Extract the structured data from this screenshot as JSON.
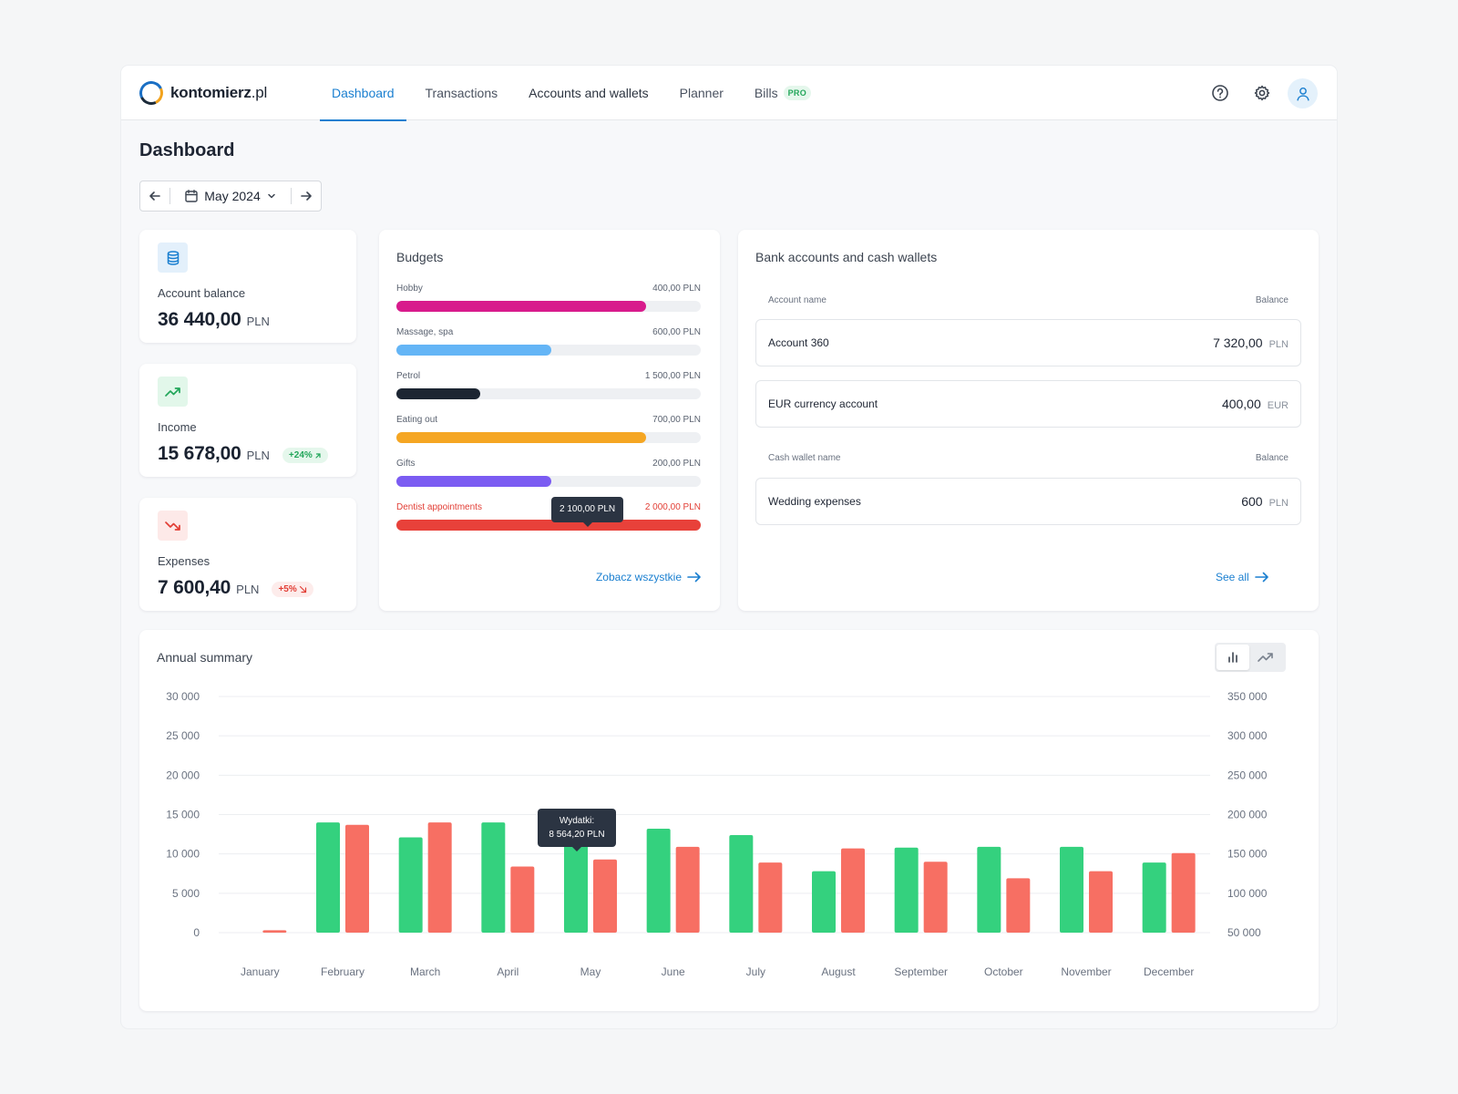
{
  "brand": {
    "name": "kontomierz",
    "tld": ".pl"
  },
  "nav": {
    "items": [
      {
        "label": "Dashboard"
      },
      {
        "label": "Transactions"
      },
      {
        "label": "Accounts and wallets"
      },
      {
        "label": "Planner"
      },
      {
        "label": "Bills",
        "badge": "PRO"
      }
    ]
  },
  "header": {
    "icons": [
      "help-icon",
      "gear-icon",
      "user-icon"
    ]
  },
  "page": {
    "title": "Dashboard"
  },
  "month_picker": {
    "value": "May 2024"
  },
  "stats": {
    "balance": {
      "label": "Account balance",
      "value": "36 440,00",
      "currency": "PLN"
    },
    "income": {
      "label": "Income",
      "value": "15 678,00",
      "currency": "PLN",
      "change": "+24%"
    },
    "expenses": {
      "label": "Expenses",
      "value": "7 600,40",
      "currency": "PLN",
      "change": "+5%"
    }
  },
  "budgets": {
    "title": "Budgets",
    "items": [
      {
        "name": "Hobby",
        "limit": "400,00 PLN",
        "progress": 0.82,
        "color": "#d81b8c"
      },
      {
        "name": "Massage, spa",
        "limit": "600,00 PLN",
        "progress": 0.51,
        "color": "#64b5f6"
      },
      {
        "name": "Petrol",
        "limit": "1 500,00 PLN",
        "progress": 0.275,
        "color": "#1c2532"
      },
      {
        "name": "Eating out",
        "limit": "700,00 PLN",
        "progress": 0.82,
        "color": "#f5a623"
      },
      {
        "name": "Gifts",
        "limit": "200,00 PLN",
        "progress": 0.51,
        "color": "#7b5cf2"
      },
      {
        "name": "Dentist appointments",
        "limit": "2 000,00 PLN",
        "progress": 1.0,
        "color": "#e8413a",
        "over": true
      }
    ],
    "tooltip": "2 100,00 PLN",
    "see_all": "Zobacz wszystkie"
  },
  "accounts": {
    "title": "Bank accounts and cash wallets",
    "bank_header": {
      "name": "Account name",
      "balance": "Balance"
    },
    "bank": [
      {
        "name": "Account 360",
        "balance": "7 320,00",
        "currency": "PLN"
      },
      {
        "name": "EUR currency account",
        "balance": "400,00",
        "currency": "EUR"
      }
    ],
    "cash_header": {
      "name": "Cash wallet name",
      "balance": "Balance"
    },
    "cash": [
      {
        "name": "Wedding expenses",
        "balance": "600",
        "currency": "PLN"
      }
    ],
    "see_all": "See all"
  },
  "annual": {
    "title": "Annual summary",
    "tooltip": {
      "line1": "Wydatki:",
      "line2": "8 564,20 PLN"
    }
  },
  "chart_data": {
    "type": "bar",
    "categories": [
      "January",
      "February",
      "March",
      "April",
      "May",
      "June",
      "July",
      "August",
      "September",
      "October",
      "November",
      "December"
    ],
    "series": [
      {
        "values": [
          0,
          14000,
          12100,
          14000,
          14000,
          13200,
          12400,
          7800,
          10800,
          10900,
          10900,
          8900
        ],
        "color": "#34d17e"
      },
      {
        "values": [
          300,
          13700,
          14000,
          8400,
          9300,
          10900,
          8900,
          10700,
          9000,
          6900,
          7800,
          10100
        ],
        "color": "#f76f63"
      }
    ],
    "y_left_ticks": [
      "30 000",
      "25 000",
      "20 000",
      "15 000",
      "10 000",
      "5 000",
      "0"
    ],
    "y_right_ticks": [
      "350 000",
      "300 000",
      "250 000",
      "200 000",
      "150 000",
      "100 000",
      "50 000"
    ],
    "ylim": [
      0,
      30000
    ],
    "grid": true
  }
}
